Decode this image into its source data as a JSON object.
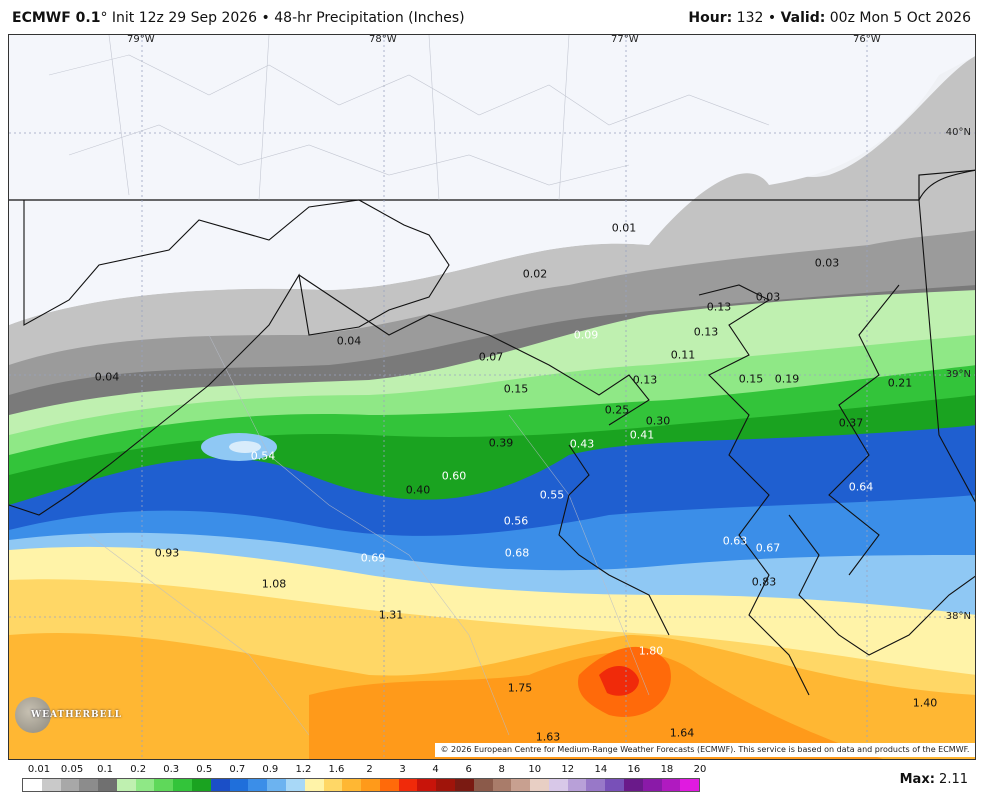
{
  "header": {
    "model": "ECMWF 0.1",
    "degree": "°",
    "init": "Init 12z 29 Sep 2026",
    "bullet": "•",
    "product": "48-hr Precipitation (Inches)",
    "hour_label": "Hour:",
    "hour": "132",
    "valid_label": "Valid:",
    "valid": "00z Mon 5 Oct 2026"
  },
  "map": {
    "longitudes": [
      "79°W",
      "78°W",
      "77°W",
      "76°W"
    ],
    "latitudes": [
      "40°N",
      "39°N",
      "38°N"
    ],
    "values": [
      "0.01",
      "0.02",
      "0.03",
      "0.03",
      "0.04",
      "0.04",
      "0.07",
      "0.09",
      "0.11",
      "0.13",
      "0.13",
      "0.13",
      "0.15",
      "0.15",
      "0.19",
      "0.21",
      "0.25",
      "0.30",
      "0.37",
      "0.39",
      "0.41",
      "0.43",
      "0.54",
      "0.55",
      "0.56",
      "0.60",
      "0.63",
      "0.64",
      "0.67",
      "0.68",
      "0.69",
      "0.83",
      "0.93",
      "1.08",
      "1.31",
      "1.40",
      "1.63",
      "1.64",
      "1.75",
      "1.80",
      "0.40"
    ],
    "credit": "© 2026 European Centre for Medium-Range Weather Forecasts (ECMWF). This service is based on data and products of the ECMWF.",
    "logo_text": "WEATHERBELL"
  },
  "legend": {
    "ticks": [
      "0.01",
      "0.05",
      "0.1",
      "0.2",
      "0.3",
      "0.5",
      "0.7",
      "0.9",
      "1.2",
      "1.6",
      "2",
      "3",
      "4",
      "6",
      "8",
      "10",
      "12",
      "14",
      "16",
      "18",
      "20"
    ],
    "colors": [
      "#ffffff",
      "#c9c9c9",
      "#a8a8a8",
      "#8c8c8c",
      "#707070",
      "#bff0b0",
      "#8fe886",
      "#5fd85a",
      "#33c43a",
      "#1aa320",
      "#1b4fc7",
      "#1f6fdb",
      "#3b8ee8",
      "#6cb3f0",
      "#a8d8f7",
      "#fff3a8",
      "#ffd766",
      "#ffb733",
      "#ff9a1a",
      "#ff6a0a",
      "#f02a0a",
      "#c8140a",
      "#a0140a",
      "#7a1a12",
      "#8b5a4a",
      "#a97c6a",
      "#c8a090",
      "#e8cfc4",
      "#d8c8e8",
      "#b8a0d8",
      "#9878c8",
      "#7850b8",
      "#6a1a8a",
      "#8a1aa8",
      "#b01ac0",
      "#e01ae0"
    ],
    "max_label": "Max:",
    "max": "2.11"
  }
}
